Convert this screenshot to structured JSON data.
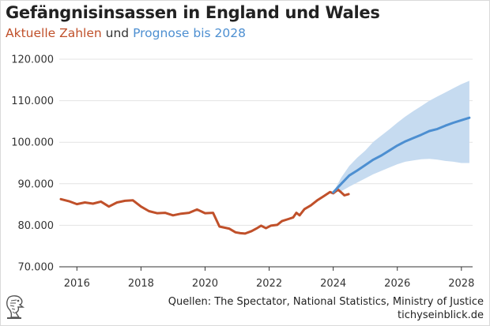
{
  "header": {
    "title": "Gefängnisinsassen in England und Wales",
    "subtitle_actual": "Aktuelle Zahlen",
    "subtitle_mid": "und",
    "subtitle_forecast": "Prognose bis 2028"
  },
  "footer": {
    "source": "Quellen: The Spectator, National Statistics, Ministry of Justice",
    "site": "tichyseinblick.de"
  },
  "logo": {
    "icon": "eagle-head-logo-icon"
  },
  "colors": {
    "actual": "#c0502a",
    "forecast": "#4d8fd1",
    "band": "#c6dbf0",
    "grid": "#e3e3e3"
  },
  "chart_data": {
    "type": "line",
    "title": "Gefängnisinsassen in England und Wales",
    "xlabel": "",
    "ylabel": "",
    "xlim": [
      2015.45,
      2028.35
    ],
    "ylim": [
      70000,
      120000
    ],
    "x_ticks": [
      2016,
      2018,
      2020,
      2022,
      2024,
      2026,
      2028
    ],
    "x_tick_labels": [
      "2016",
      "2018",
      "2020",
      "2022",
      "2024",
      "2026",
      "2028"
    ],
    "y_ticks": [
      70000,
      80000,
      90000,
      100000,
      110000,
      120000
    ],
    "y_tick_labels": [
      "70.000",
      "80.000",
      "90.000",
      "100.000",
      "110.000",
      "120.000"
    ],
    "grid": "horizontal",
    "series": [
      {
        "name": "Aktuelle Zahlen",
        "color": "#c0502a",
        "points": [
          [
            2015.5,
            86300
          ],
          [
            2015.75,
            85800
          ],
          [
            2016.0,
            85100
          ],
          [
            2016.25,
            85500
          ],
          [
            2016.5,
            85200
          ],
          [
            2016.75,
            85700
          ],
          [
            2017.0,
            84500
          ],
          [
            2017.25,
            85500
          ],
          [
            2017.5,
            85900
          ],
          [
            2017.75,
            86000
          ],
          [
            2018.0,
            84500
          ],
          [
            2018.25,
            83400
          ],
          [
            2018.5,
            82900
          ],
          [
            2018.75,
            83000
          ],
          [
            2019.0,
            82400
          ],
          [
            2019.25,
            82800
          ],
          [
            2019.5,
            83000
          ],
          [
            2019.75,
            83800
          ],
          [
            2020.0,
            82900
          ],
          [
            2020.25,
            83000
          ],
          [
            2020.45,
            79700
          ],
          [
            2020.75,
            79200
          ],
          [
            2020.95,
            78300
          ],
          [
            2021.1,
            78100
          ],
          [
            2021.25,
            78000
          ],
          [
            2021.45,
            78600
          ],
          [
            2021.6,
            79200
          ],
          [
            2021.75,
            79900
          ],
          [
            2021.9,
            79300
          ],
          [
            2022.05,
            79900
          ],
          [
            2022.25,
            80100
          ],
          [
            2022.4,
            81000
          ],
          [
            2022.6,
            81500
          ],
          [
            2022.75,
            81900
          ],
          [
            2022.85,
            83000
          ],
          [
            2022.95,
            82400
          ],
          [
            2023.1,
            83900
          ],
          [
            2023.3,
            84800
          ],
          [
            2023.5,
            86000
          ],
          [
            2023.7,
            87000
          ],
          [
            2023.9,
            88000
          ],
          [
            2024.0,
            87700
          ],
          [
            2024.15,
            88600
          ],
          [
            2024.25,
            87900
          ],
          [
            2024.35,
            87200
          ],
          [
            2024.48,
            87500
          ]
        ]
      },
      {
        "name": "Prognose bis 2028",
        "color": "#4d8fd1",
        "points": [
          [
            2024.0,
            87900
          ],
          [
            2024.25,
            90000
          ],
          [
            2024.5,
            92000
          ],
          [
            2024.75,
            93200
          ],
          [
            2025.0,
            94500
          ],
          [
            2025.25,
            95800
          ],
          [
            2025.5,
            96800
          ],
          [
            2025.75,
            98000
          ],
          [
            2026.0,
            99200
          ],
          [
            2026.25,
            100200
          ],
          [
            2026.5,
            101000
          ],
          [
            2026.75,
            101800
          ],
          [
            2027.0,
            102700
          ],
          [
            2027.25,
            103200
          ],
          [
            2027.5,
            104000
          ],
          [
            2027.75,
            104700
          ],
          [
            2028.0,
            105300
          ],
          [
            2028.25,
            105900
          ]
        ],
        "band": [
          [
            2024.0,
            87900,
            87900
          ],
          [
            2024.25,
            88200,
            91500
          ],
          [
            2024.5,
            89300,
            94300
          ],
          [
            2024.75,
            90300,
            96300
          ],
          [
            2025.0,
            91300,
            98000
          ],
          [
            2025.25,
            92300,
            100100
          ],
          [
            2025.5,
            93100,
            101600
          ],
          [
            2025.75,
            93900,
            103100
          ],
          [
            2026.0,
            94700,
            104700
          ],
          [
            2026.25,
            95300,
            106200
          ],
          [
            2026.5,
            95600,
            107500
          ],
          [
            2026.75,
            95900,
            108700
          ],
          [
            2027.0,
            96000,
            110000
          ],
          [
            2027.25,
            95800,
            111000
          ],
          [
            2027.5,
            95500,
            112000
          ],
          [
            2027.75,
            95300,
            113000
          ],
          [
            2028.0,
            95000,
            114000
          ],
          [
            2028.25,
            95000,
            114800
          ]
        ]
      }
    ]
  }
}
